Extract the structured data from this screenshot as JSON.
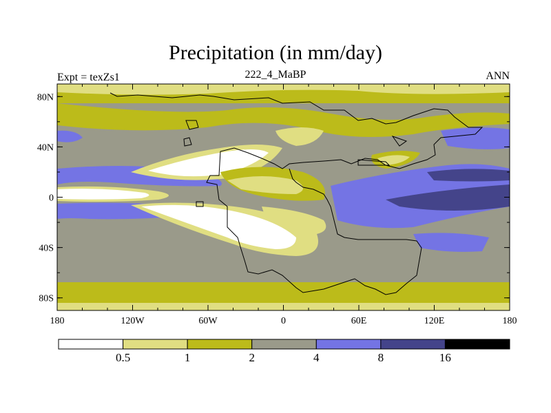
{
  "map": {
    "title": "Precipitation (in mm/day)",
    "left_label": "Expt = texZs1",
    "center_label": "222_4_MaBP",
    "right_label": "ANN",
    "x_ticks": [
      "180",
      "120W",
      "60W",
      "0",
      "60E",
      "120E",
      "180"
    ],
    "y_ticks": [
      "80N",
      "40N",
      "0",
      "40S",
      "80S"
    ],
    "lon_range": [
      -180,
      180
    ],
    "lat_range": [
      -90,
      90
    ]
  },
  "colorbar": {
    "colors": [
      "#ffffff",
      "#e0de82",
      "#bcbb1a",
      "#9a9a8a",
      "#7474e4",
      "#44448a",
      "#000000"
    ],
    "labels": [
      "0.5",
      "1",
      "2",
      "4",
      "8",
      "16"
    ]
  }
}
